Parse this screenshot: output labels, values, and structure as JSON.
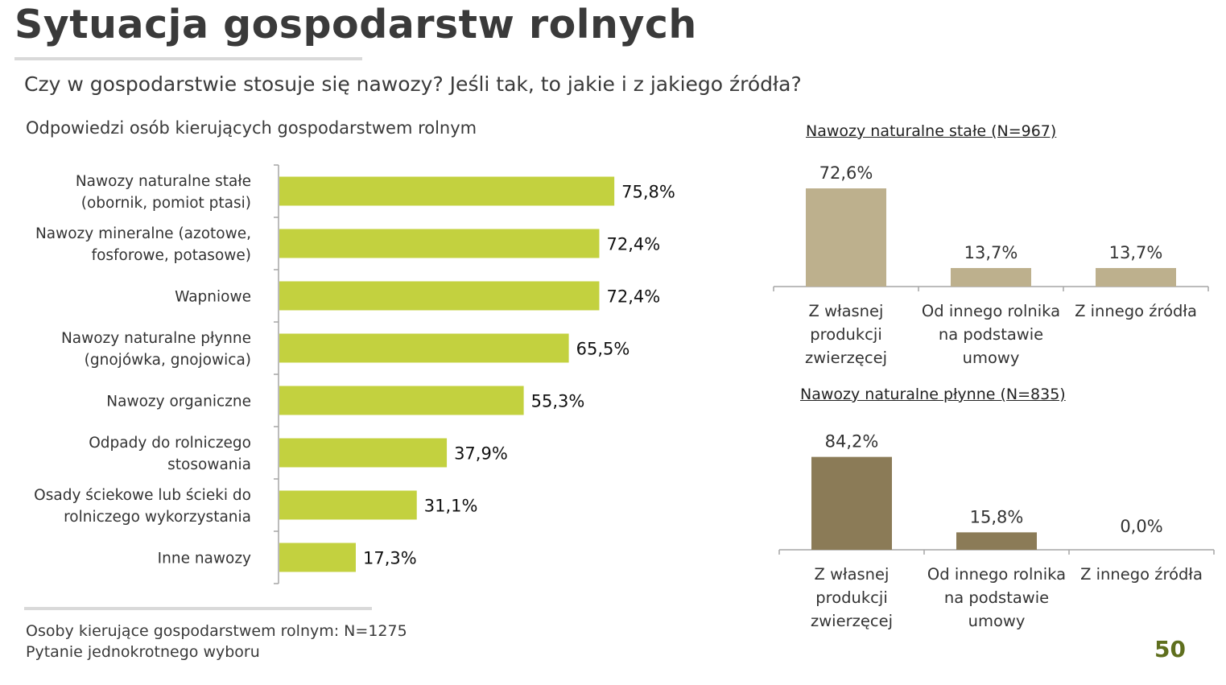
{
  "page": {
    "title": "Sytuacja gospodarstw rolnych",
    "question": "Czy w gospodarstwie stosuje się nawozy? Jeśli tak, to jakie i z jakiego źródła?",
    "subtitle": "Odpowiedzi osób kierujących gospodarstwem rolnym",
    "note_line1": "Osoby kierujące gospodarstwem rolnym: N=1275",
    "note_line2": "Pytanie jednokrotnego wyboru",
    "page_number": "50"
  },
  "colors": {
    "main_bar": "#c3d13f",
    "solid_bar": "#bdb08d",
    "liquid_bar": "#8b7b57",
    "axis": "#a6a6a6",
    "page_number": "#5f6f1e"
  },
  "chart_data": [
    {
      "type": "bar",
      "orientation": "horizontal",
      "title": "Odpowiedzi osób kierujących gospodarstwem rolnym",
      "categories": [
        [
          "Nawozy naturalne stałe",
          "(obornik, pomiot ptasi)"
        ],
        [
          "Nawozy mineralne (azotowe,",
          "fosforowe, potasowe)"
        ],
        [
          "Wapniowe"
        ],
        [
          "Nawozy naturalne płynne",
          "(gnojówka, gnojowica)"
        ],
        [
          "Nawozy organiczne"
        ],
        [
          "Odpady do rolniczego",
          "stosowania"
        ],
        [
          "Osady ściekowe lub ścieki do",
          "rolniczego wykorzystania"
        ],
        [
          "Inne nawozy"
        ]
      ],
      "values": [
        75.8,
        72.4,
        72.4,
        65.5,
        55.3,
        37.9,
        31.1,
        17.3
      ],
      "value_labels": [
        "75,8%",
        "72,4%",
        "72,4%",
        "65,5%",
        "55,3%",
        "37,9%",
        "31,1%",
        "17,3%"
      ],
      "xlim": [
        0,
        100
      ],
      "unit": "%"
    },
    {
      "type": "bar",
      "orientation": "vertical",
      "title": "Nawozy naturalne stałe (N=967)",
      "categories": [
        [
          "Z własnej",
          "produkcji",
          "zwierzęcej"
        ],
        [
          "Od innego rolnika",
          "na podstawie",
          "umowy"
        ],
        [
          "Z innego źródła"
        ]
      ],
      "values": [
        72.6,
        13.7,
        13.7
      ],
      "value_labels": [
        "72,6%",
        "13,7%",
        "13,7%"
      ],
      "ylim": [
        0,
        100
      ],
      "unit": "%"
    },
    {
      "type": "bar",
      "orientation": "vertical",
      "title": "Nawozy naturalne płynne (N=835)",
      "categories": [
        [
          "Z własnej",
          "produkcji",
          "zwierzęcej"
        ],
        [
          "Od innego rolnika",
          "na podstawie",
          "umowy"
        ],
        [
          "Z innego źródła"
        ]
      ],
      "values": [
        84.2,
        15.8,
        0.0
      ],
      "value_labels": [
        "84,2%",
        "15,8%",
        "0,0%"
      ],
      "ylim": [
        0,
        100
      ],
      "unit": "%"
    }
  ]
}
